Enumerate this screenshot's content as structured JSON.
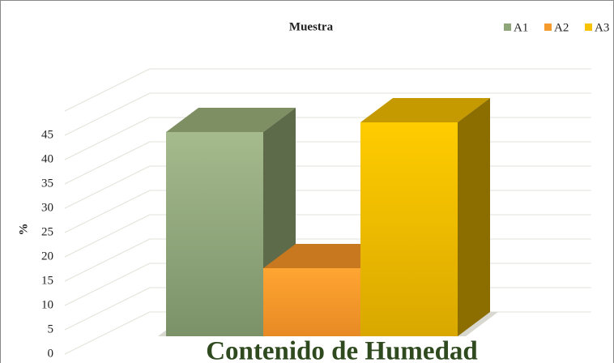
{
  "chart_data": {
    "type": "bar3d",
    "title": "Muestra",
    "y_label": "%",
    "x_label": "Contenido de Humedad",
    "series": [
      {
        "name": "A1",
        "color": "#8fa67a",
        "values": [
          42
        ]
      },
      {
        "name": "A2",
        "color": "#f59a2c",
        "values": [
          14
        ]
      },
      {
        "name": "A3",
        "color": "#f7c200",
        "values": [
          44
        ]
      }
    ],
    "ylim": [
      0,
      50
    ],
    "yticks": [
      0,
      5,
      10,
      15,
      20,
      25,
      30,
      35,
      40,
      45
    ],
    "grid": true,
    "legend": "top-right"
  }
}
